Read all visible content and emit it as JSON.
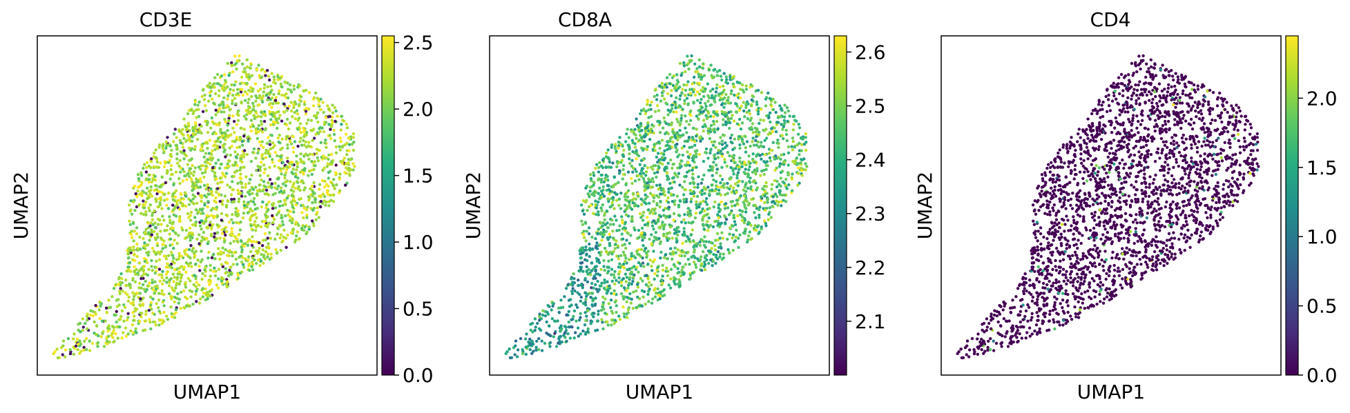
{
  "panels": [
    {
      "title": "CD3E",
      "xlabel": "UMAP1",
      "ylabel": "UMAP2"
    },
    {
      "title": "CD8A",
      "xlabel": "UMAP1",
      "ylabel": "UMAP2"
    },
    {
      "title": "CD4",
      "xlabel": "UMAP1",
      "ylabel": "UMAP2"
    }
  ],
  "chart_data": [
    {
      "type": "scatter",
      "title": "CD3E",
      "xlabel": "UMAP1",
      "ylabel": "UMAP2",
      "colormap": "viridis",
      "colorbar": {
        "min": 0.0,
        "max": 2.55,
        "ticks": [
          0.0,
          0.5,
          1.0,
          1.5,
          2.0,
          2.5
        ],
        "tick_labels": [
          "0.0",
          "0.5",
          "1.0",
          "1.5",
          "2.0",
          "2.5"
        ]
      },
      "typical_value": 2.2,
      "fraction_zero": 0.05,
      "x_ticks": "none",
      "y_ticks": "none"
    },
    {
      "type": "scatter",
      "title": "CD8A",
      "xlabel": "UMAP1",
      "ylabel": "UMAP2",
      "colormap": "viridis",
      "colorbar": {
        "min": 2.0,
        "max": 2.63,
        "ticks": [
          2.1,
          2.2,
          2.3,
          2.4,
          2.5,
          2.6
        ],
        "tick_labels": [
          "2.1",
          "2.2",
          "2.3",
          "2.4",
          "2.5",
          "2.6"
        ]
      },
      "typical_value": 2.45,
      "x_ticks": "none",
      "y_ticks": "none"
    },
    {
      "type": "scatter",
      "title": "CD4",
      "xlabel": "UMAP1",
      "ylabel": "UMAP2",
      "colormap": "viridis",
      "colorbar": {
        "min": 0.0,
        "max": 2.45,
        "ticks": [
          0.0,
          0.5,
          1.0,
          1.5,
          2.0
        ],
        "tick_labels": [
          "0.0",
          "0.5",
          "1.0",
          "1.5",
          "2.0"
        ]
      },
      "typical_value": 0.0,
      "fraction_nonzero": 0.04,
      "x_ticks": "none",
      "y_ticks": "none"
    }
  ]
}
